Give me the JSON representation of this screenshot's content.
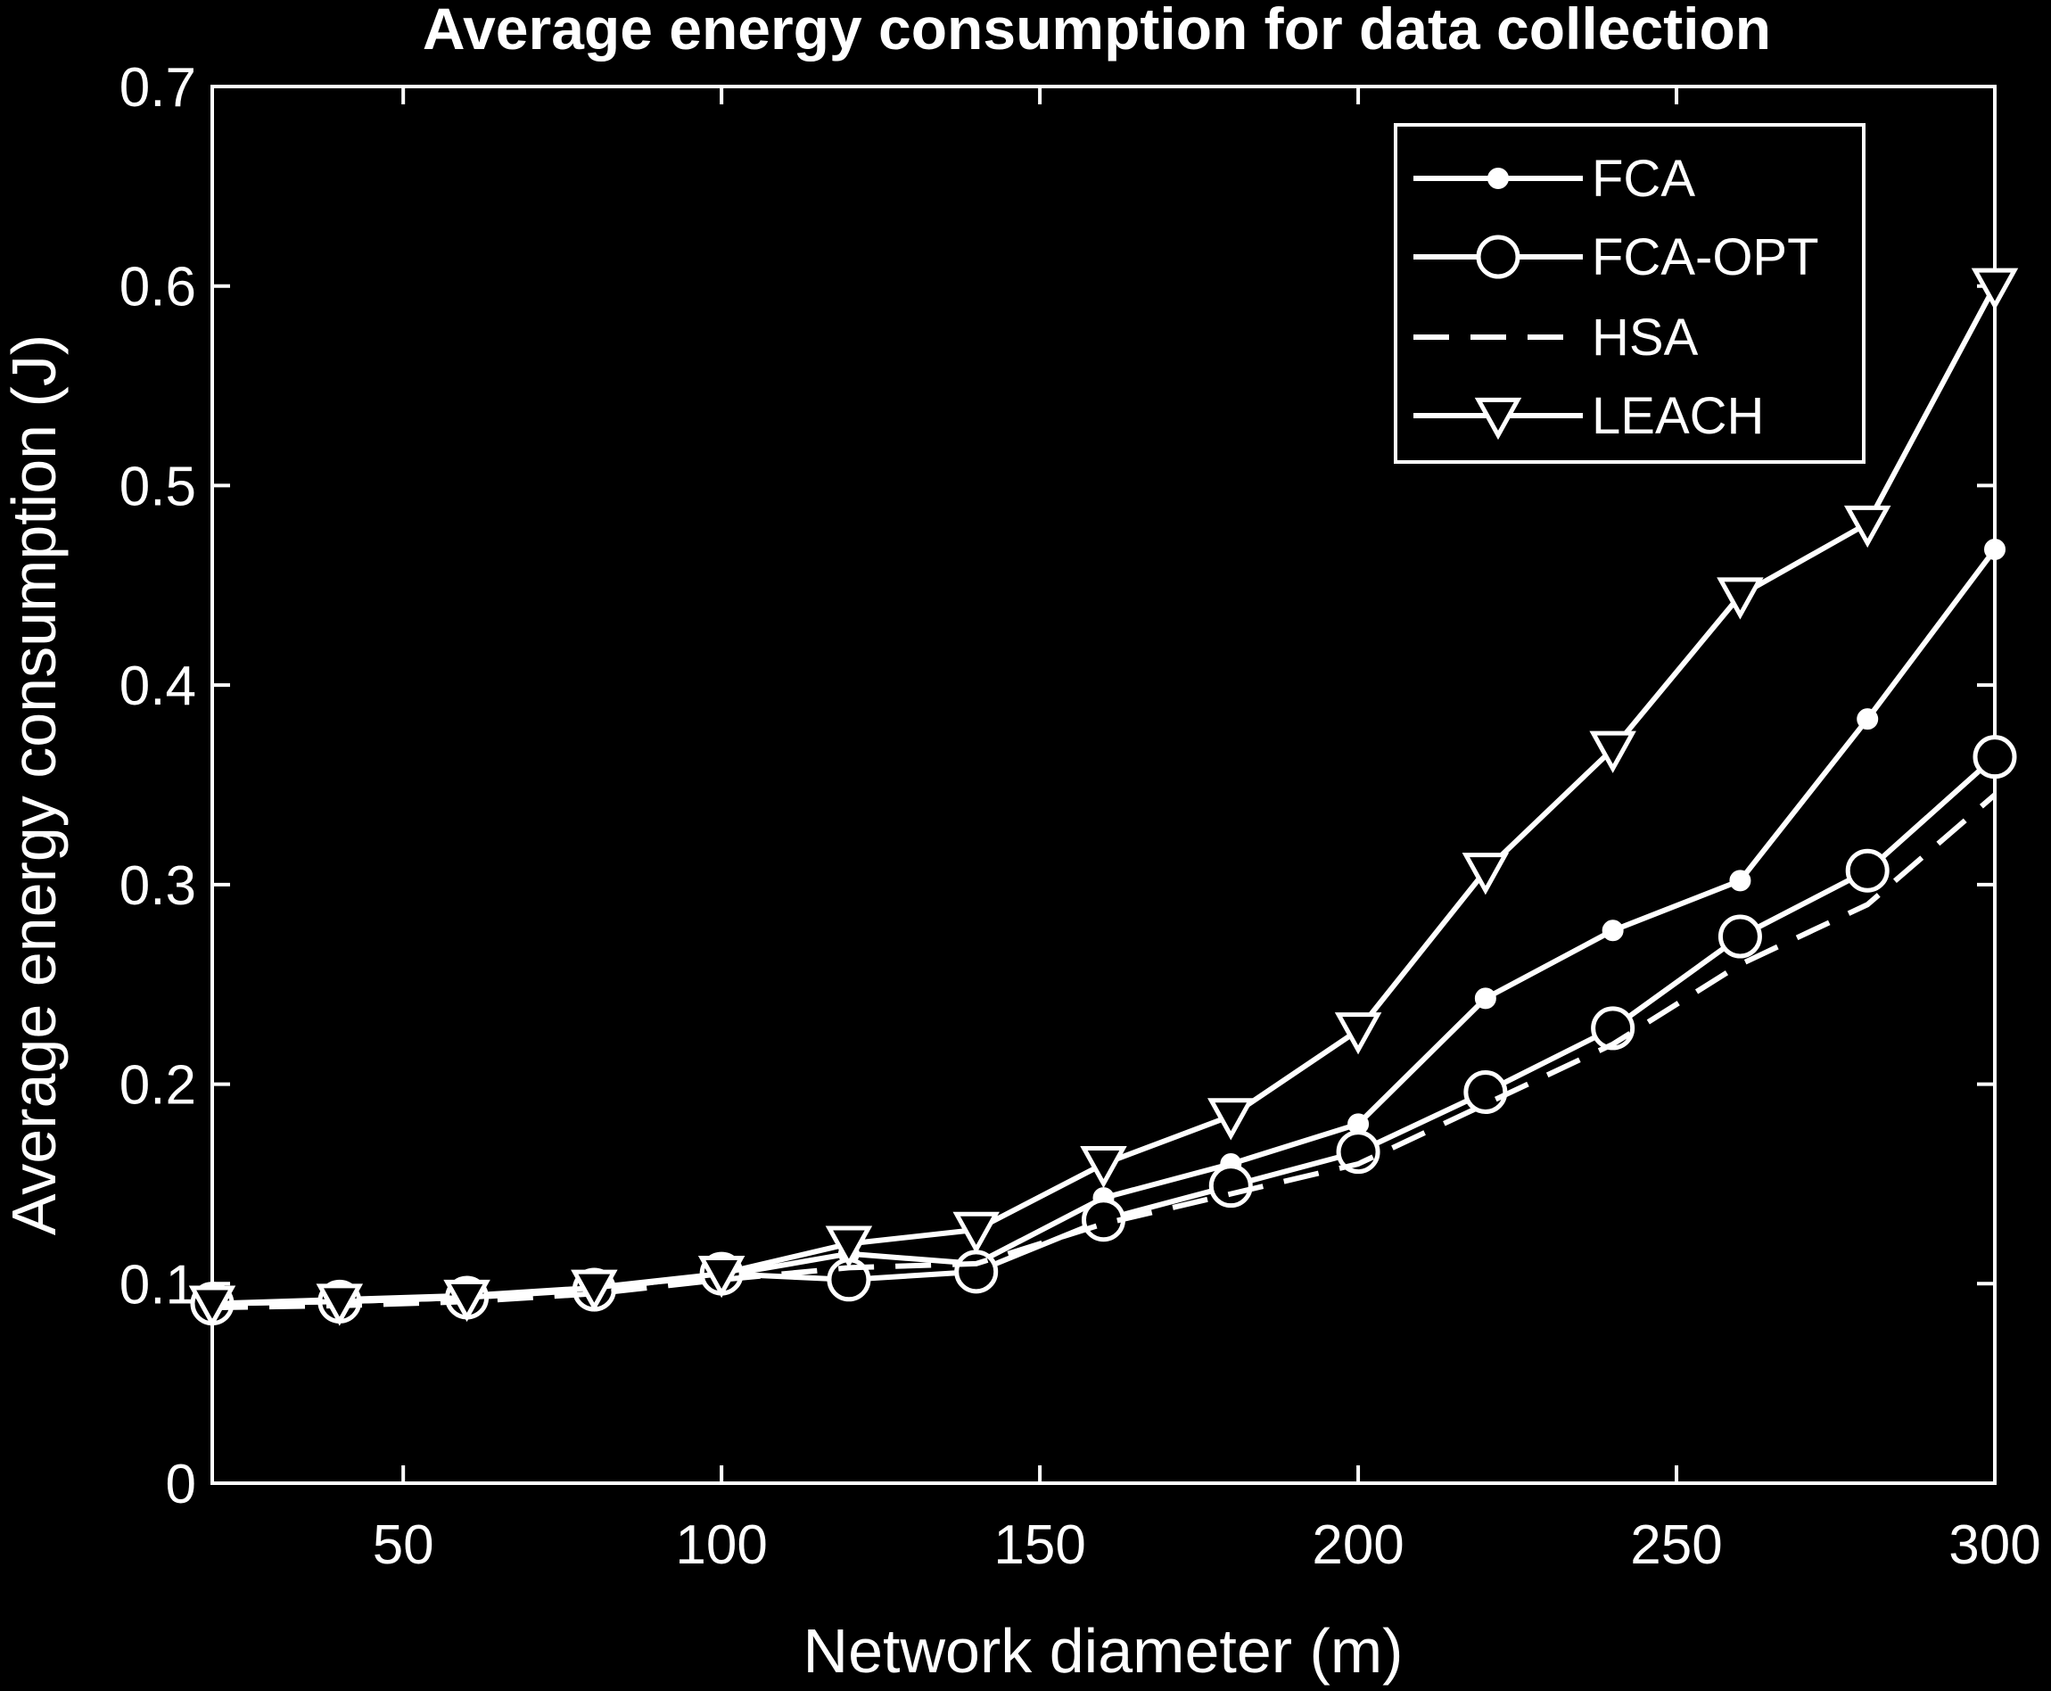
{
  "chart_data": {
    "type": "line",
    "title": "Average energy consumption for data collection",
    "xlabel": "Network diameter (m)",
    "ylabel": "Average energy consumption (J)",
    "xlim": [
      20,
      300
    ],
    "ylim": [
      0,
      0.7
    ],
    "xticks": [
      50,
      100,
      150,
      200,
      250,
      300
    ],
    "yticks": [
      0,
      0.1,
      0.2,
      0.3,
      0.4,
      0.5,
      0.6,
      0.7
    ],
    "xtick_labels": [
      "50",
      "100",
      "150",
      "200",
      "250",
      "300"
    ],
    "ytick_labels": [
      "0",
      "0.1",
      "0.2",
      "0.3",
      "0.4",
      "0.5",
      "0.6",
      "0.7"
    ],
    "grid": false,
    "legend_position": "top-right",
    "x": [
      20,
      40,
      60,
      80,
      100,
      120,
      140,
      160,
      180,
      200,
      220,
      240,
      260,
      280,
      300
    ],
    "series": [
      {
        "name": "FCA",
        "marker": "dot",
        "dash": "solid",
        "values": [
          0.09,
          0.092,
          0.094,
          0.098,
          0.104,
          0.115,
          0.11,
          0.143,
          0.16,
          0.18,
          0.243,
          0.277,
          0.302,
          0.383,
          0.468
        ]
      },
      {
        "name": "FCA-OPT",
        "marker": "circle",
        "dash": "solid",
        "values": [
          0.09,
          0.091,
          0.093,
          0.097,
          0.105,
          0.102,
          0.106,
          0.132,
          0.149,
          0.166,
          0.196,
          0.228,
          0.274,
          0.307,
          0.364
        ]
      },
      {
        "name": "HSA",
        "marker": "none",
        "dash": "dashed",
        "values": [
          0.088,
          0.089,
          0.091,
          0.095,
          0.102,
          0.108,
          0.11,
          0.13,
          0.145,
          0.16,
          0.19,
          0.22,
          0.26,
          0.29,
          0.345
        ]
      },
      {
        "name": "LEACH",
        "marker": "triangle-down",
        "dash": "solid",
        "values": [
          0.09,
          0.091,
          0.093,
          0.098,
          0.105,
          0.12,
          0.127,
          0.16,
          0.184,
          0.227,
          0.307,
          0.368,
          0.445,
          0.481,
          0.6
        ]
      }
    ],
    "colors": {
      "background": "#000000",
      "foreground": "#ffffff"
    }
  }
}
